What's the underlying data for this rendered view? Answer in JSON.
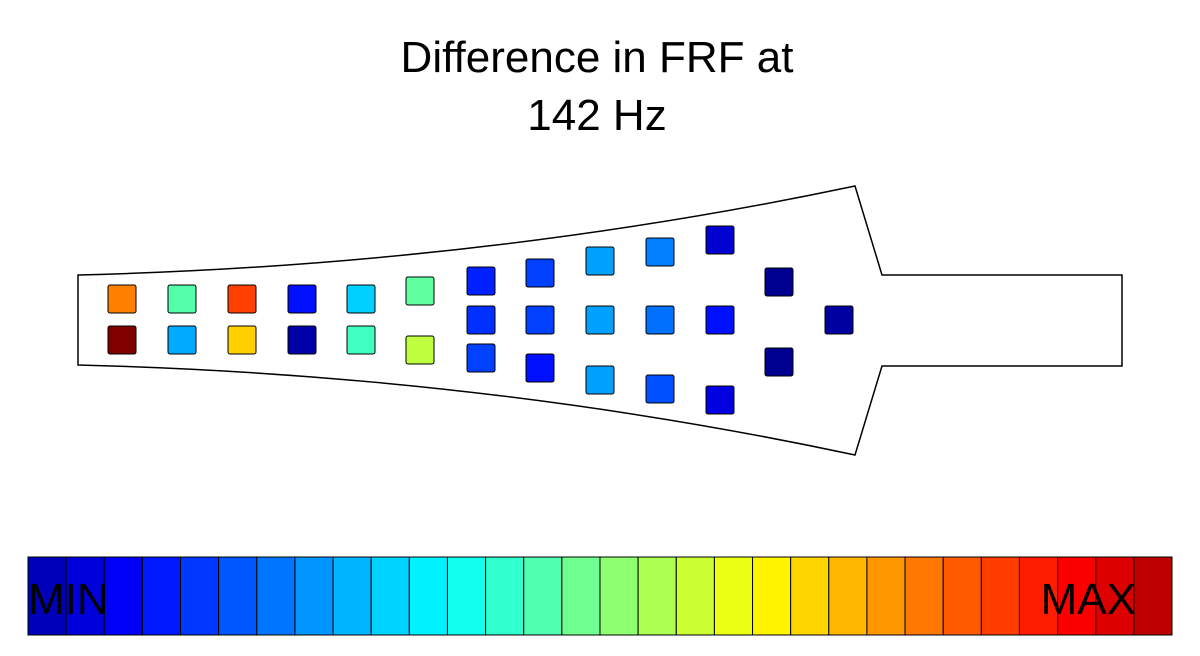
{
  "title": {
    "lines": [
      "Difference in FRF at",
      "142 Hz"
    ]
  },
  "colorbar": {
    "min_label": "MIN",
    "max_label": "MAX"
  }
}
